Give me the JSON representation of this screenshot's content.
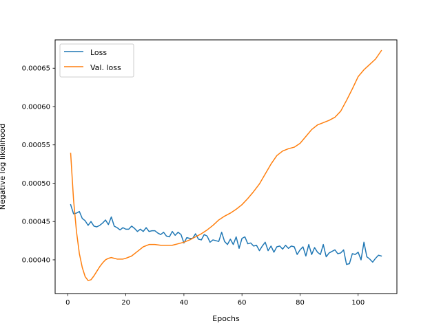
{
  "chart_data": {
    "type": "line",
    "title": "",
    "xlabel": "Epochs",
    "ylabel": "Negative log likelihood",
    "xlim": [
      -4.35,
      113.35
    ],
    "ylim": [
      0.000356,
      0.000687
    ],
    "xticks": [
      0,
      20,
      40,
      60,
      80,
      100
    ],
    "xtick_labels": [
      "0",
      "20",
      "40",
      "60",
      "80",
      "100"
    ],
    "yticks": [
      0.0004,
      0.00045,
      0.0005,
      0.00055,
      0.0006,
      0.00065
    ],
    "ytick_labels": [
      "0.00040",
      "0.00045",
      "0.00050",
      "0.00055",
      "0.00060",
      "0.00065"
    ],
    "grid": false,
    "legend": "upper-left",
    "series": [
      {
        "name": "Loss",
        "color": "#1f77b4",
        "x": [
          1,
          2,
          3,
          4,
          5,
          6,
          7,
          8,
          9,
          10,
          11,
          12,
          13,
          14,
          15,
          16,
          17,
          18,
          19,
          20,
          21,
          22,
          23,
          24,
          25,
          26,
          27,
          28,
          29,
          30,
          31,
          32,
          33,
          34,
          35,
          36,
          37,
          38,
          39,
          40,
          41,
          42,
          43,
          44,
          45,
          46,
          47,
          48,
          49,
          50,
          51,
          52,
          53,
          54,
          55,
          56,
          57,
          58,
          59,
          60,
          61,
          62,
          63,
          64,
          65,
          66,
          67,
          68,
          69,
          70,
          71,
          72,
          73,
          74,
          75,
          76,
          77,
          78,
          79,
          80,
          81,
          82,
          83,
          84,
          85,
          86,
          87,
          88,
          89,
          90,
          91,
          92,
          93,
          94,
          95,
          96,
          97,
          98,
          99,
          100,
          101,
          102,
          103,
          104,
          105,
          106,
          107,
          108
        ],
        "values": [
          0.000472,
          0.00046,
          0.000461,
          0.000463,
          0.000454,
          0.000451,
          0.000445,
          0.00045,
          0.000444,
          0.000443,
          0.000445,
          0.000448,
          0.000452,
          0.000446,
          0.000456,
          0.000444,
          0.000442,
          0.000439,
          0.000442,
          0.00044,
          0.00044,
          0.000444,
          0.000441,
          0.000437,
          0.00044,
          0.000437,
          0.000442,
          0.000437,
          0.000438,
          0.000438,
          0.000435,
          0.000433,
          0.000436,
          0.000431,
          0.00043,
          0.000437,
          0.000432,
          0.000436,
          0.000433,
          0.000422,
          0.000429,
          0.000428,
          0.000428,
          0.000434,
          0.000427,
          0.000426,
          0.000433,
          0.000431,
          0.000423,
          0.000426,
          0.000425,
          0.000424,
          0.000436,
          0.000424,
          0.00042,
          0.000427,
          0.00042,
          0.00043,
          0.000415,
          0.000428,
          0.00043,
          0.000421,
          0.000422,
          0.000418,
          0.000419,
          0.000412,
          0.000418,
          0.000423,
          0.000412,
          0.000418,
          0.00041,
          0.000417,
          0.000418,
          0.000414,
          0.000419,
          0.000415,
          0.000418,
          0.000417,
          0.000407,
          0.000413,
          0.000417,
          0.000405,
          0.00042,
          0.000407,
          0.000416,
          0.00041,
          0.000407,
          0.00042,
          0.000404,
          0.000409,
          0.000411,
          0.000413,
          0.000408,
          0.000409,
          0.000413,
          0.000394,
          0.000395,
          0.000408,
          0.000407,
          0.00041,
          0.0004,
          0.000423,
          0.000404,
          0.000401,
          0.000397,
          0.000402,
          0.000406,
          0.000405
        ]
      },
      {
        "name": "Val. loss",
        "color": "#ff7f0e",
        "x": [
          1,
          2,
          3,
          4,
          5,
          6,
          7,
          8,
          9,
          10,
          11,
          12,
          13,
          14,
          15,
          16,
          17,
          18,
          19,
          20,
          22,
          24,
          26,
          28,
          30,
          32,
          34,
          36,
          38,
          40,
          42,
          44,
          46,
          48,
          50,
          52,
          54,
          56,
          58,
          60,
          62,
          64,
          66,
          68,
          70,
          72,
          74,
          76,
          78,
          80,
          82,
          84,
          86,
          88,
          90,
          92,
          94,
          96,
          98,
          100,
          102,
          104,
          106,
          108
        ],
        "values": [
          0.000539,
          0.000478,
          0.000437,
          0.000408,
          0.00039,
          0.000378,
          0.000373,
          0.000374,
          0.000379,
          0.000385,
          0.000391,
          0.000396,
          0.0004,
          0.000402,
          0.000403,
          0.000402,
          0.000401,
          0.000401,
          0.000401,
          0.000402,
          0.000405,
          0.000411,
          0.000417,
          0.00042,
          0.00042,
          0.000419,
          0.000419,
          0.000419,
          0.000421,
          0.000423,
          0.000426,
          0.00043,
          0.000434,
          0.000439,
          0.000445,
          0.000452,
          0.000457,
          0.000461,
          0.000466,
          0.000472,
          0.00048,
          0.000489,
          0.000499,
          0.000512,
          0.000525,
          0.000536,
          0.000542,
          0.000545,
          0.000547,
          0.000552,
          0.000561,
          0.00057,
          0.000576,
          0.000579,
          0.000582,
          0.000586,
          0.000594,
          0.000608,
          0.000623,
          0.000639,
          0.000648,
          0.000655,
          0.000662,
          0.000673
        ]
      }
    ]
  }
}
